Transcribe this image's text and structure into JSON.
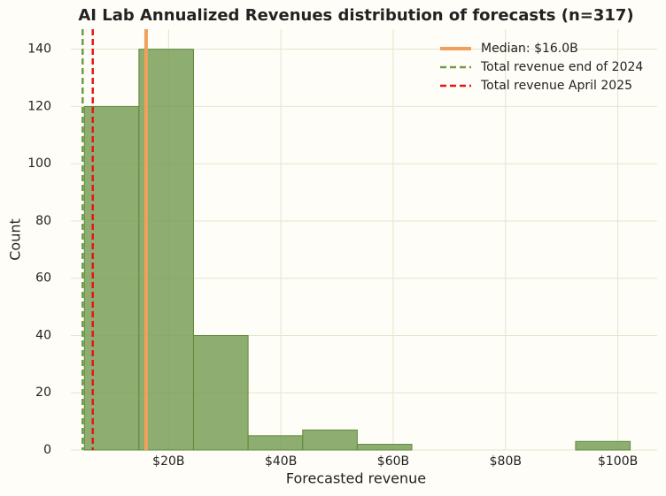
{
  "chart_data": {
    "type": "histogram",
    "title": "AI Lab Annualized Revenues distribution of forecasts (n=317)",
    "x_label": "Forecasted revenue",
    "y_label": "Count",
    "bins": [
      5,
      14.72,
      24.44,
      34.16,
      43.88,
      53.6,
      63.32,
      73.04,
      82.76,
      92.48,
      102.2
    ],
    "values": [
      120,
      140,
      40,
      5,
      7,
      2,
      0,
      0,
      0,
      3
    ],
    "color": "#7a9f58",
    "edge_color": "#5f8a3c",
    "xlim": [
      2.6,
      107
    ],
    "ylim": [
      0,
      147
    ],
    "xticks": [
      {
        "value": 20,
        "label": "$20B"
      },
      {
        "value": 40,
        "label": "$40B"
      },
      {
        "value": 60,
        "label": "$60B"
      },
      {
        "value": 80,
        "label": "$80B"
      },
      {
        "value": 100,
        "label": "$100B"
      }
    ],
    "yticks": [
      0,
      20,
      40,
      60,
      80,
      100,
      120,
      140
    ],
    "grid": true,
    "legend": "upper right",
    "vlines": [
      {
        "name": "Median: $16.0B",
        "value": 16,
        "color": "#f0a05c",
        "style": "solid"
      },
      {
        "name": "Total revenue end of 2024",
        "value": 4.7,
        "color": "#6f9a45",
        "style": "dashed"
      },
      {
        "name": "Total revenue April 2025",
        "value": 6.5,
        "color": "#e8141a",
        "style": "dashed"
      }
    ]
  }
}
